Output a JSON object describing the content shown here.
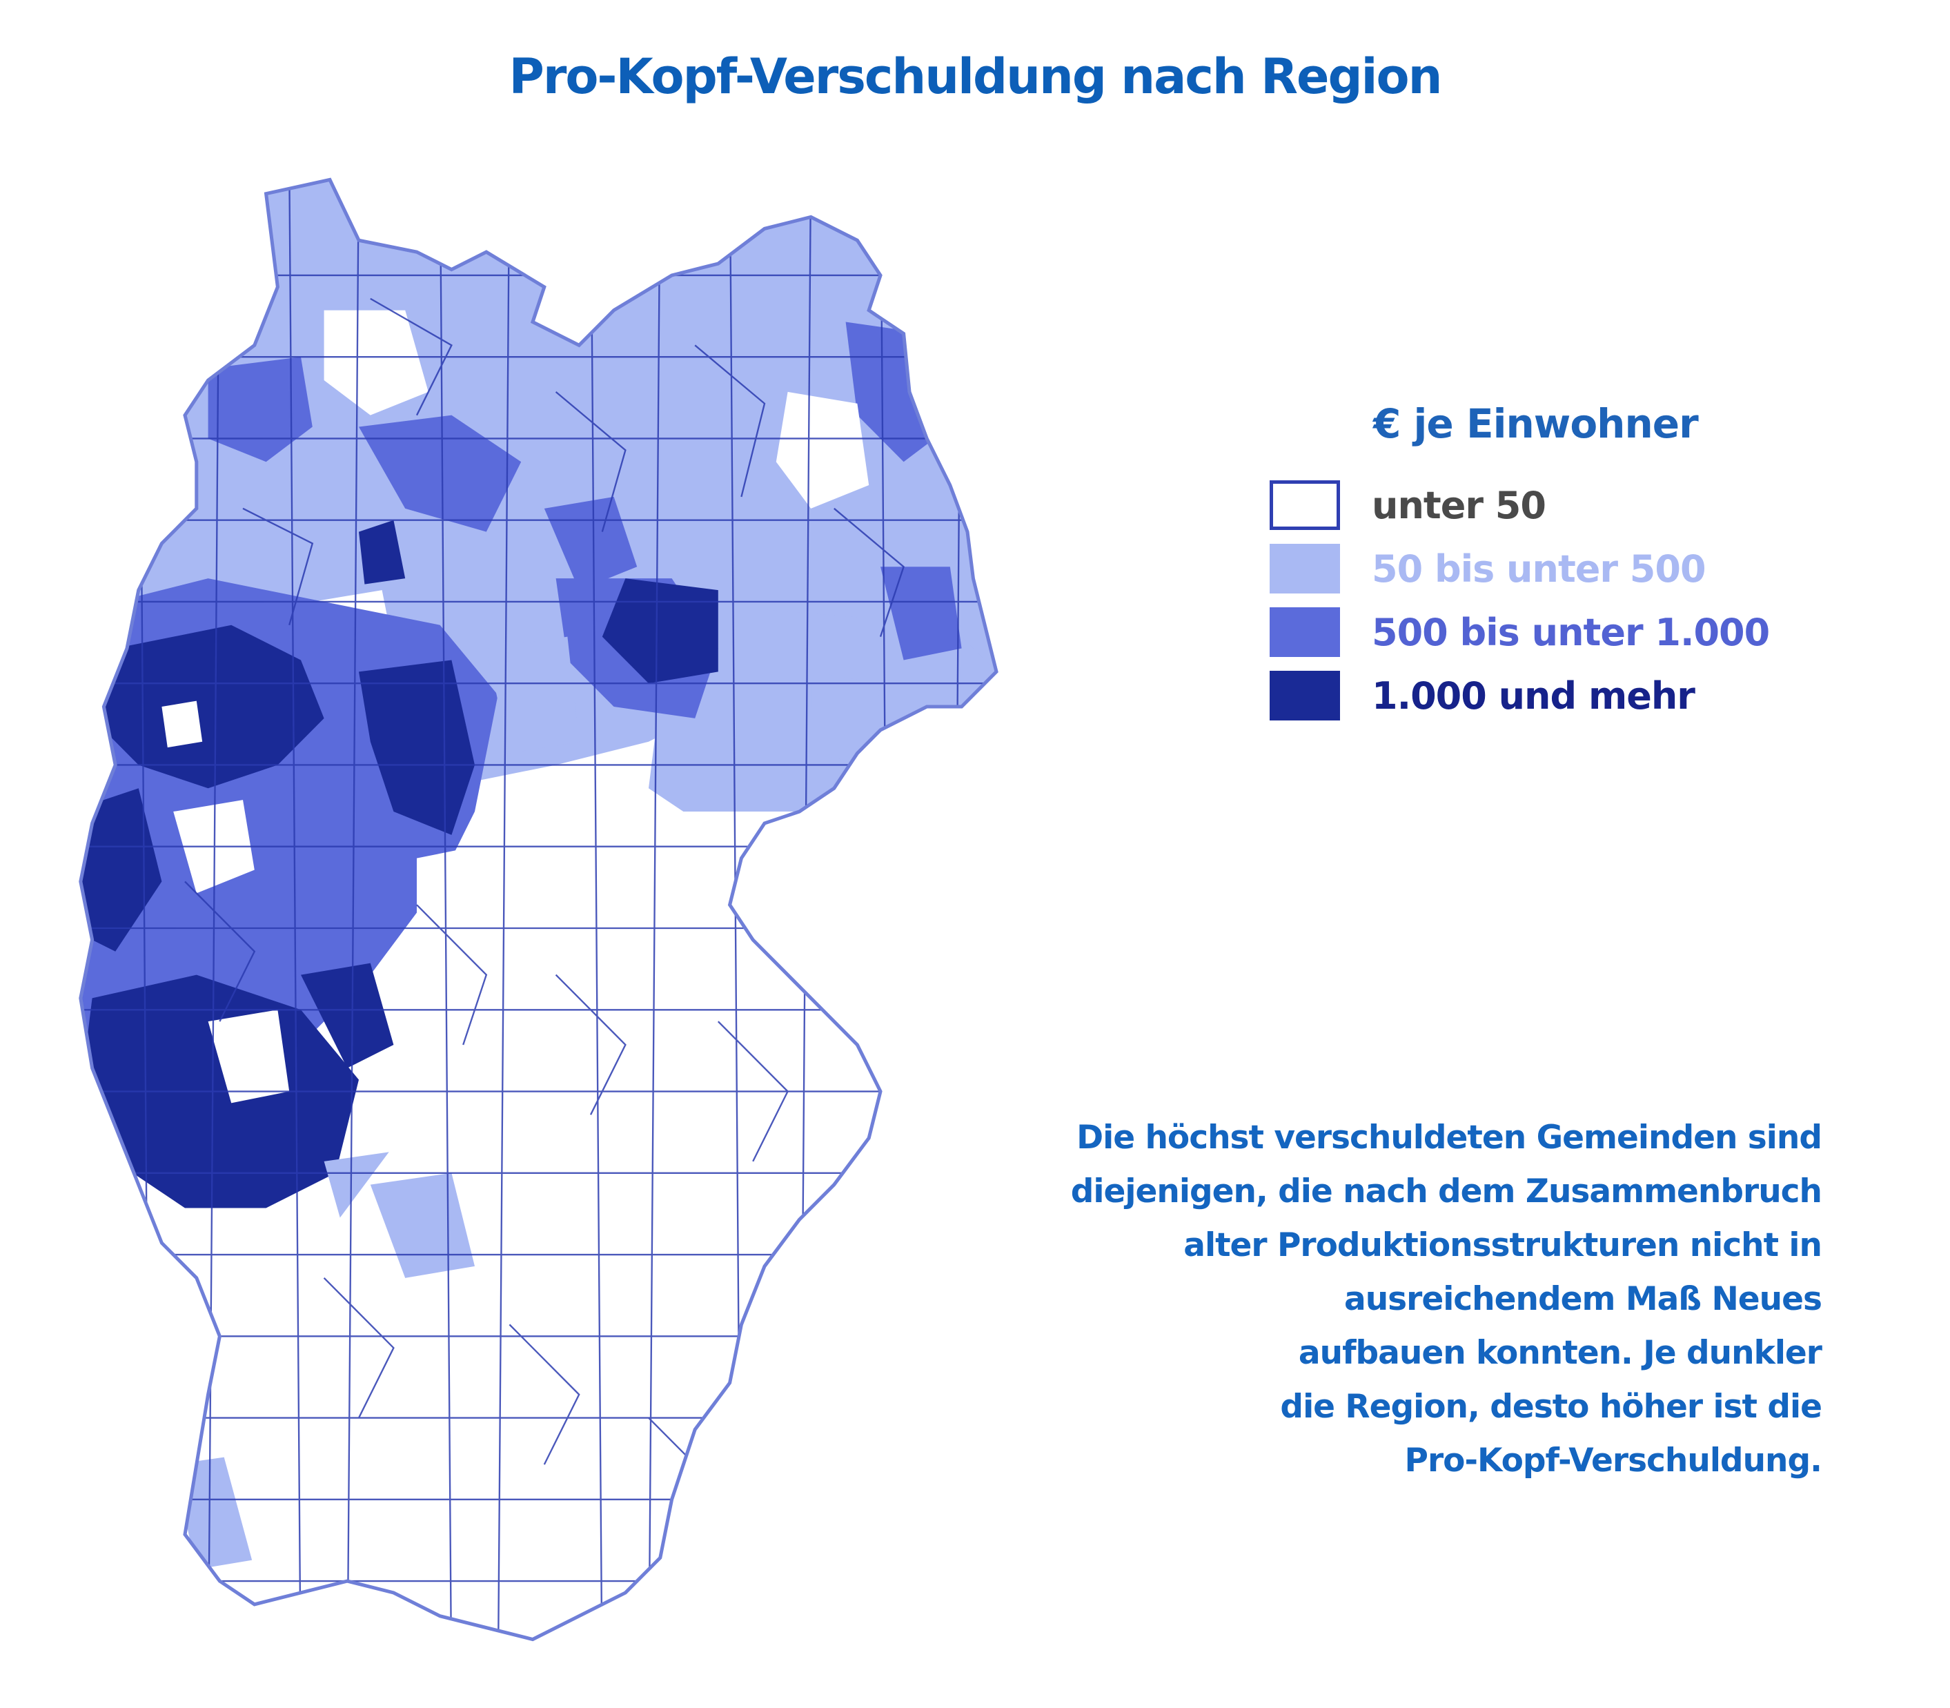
{
  "title": "Pro-Kopf-Verschuldung nach Region",
  "legend": {
    "title": "€ je Einwohner",
    "items": [
      {
        "label": "unter 50",
        "fill": "#ffffff",
        "text_color": "#4a4a4a"
      },
      {
        "label": "50 bis unter 500",
        "fill": "#a9b9f3",
        "text_color": "#a9b9f3"
      },
      {
        "label": "500 bis unter 1.000",
        "fill": "#5b6bdb",
        "text_color": "#5262d3"
      },
      {
        "label": "1.000 und mehr",
        "fill": "#1a2a96",
        "text_color": "#16228a"
      }
    ]
  },
  "description_lines": [
    "Die höchst verschuldeten Gemeinden sind",
    "diejenigen, die nach dem Zusammenbruch",
    "alter Produktionsstrukturen nicht in",
    "ausreichendem Maß Neues",
    "aufbauen konnten. Je dunkler",
    "die Region, desto höher ist die",
    "Pro-Kopf-Verschuldung."
  ],
  "colors": {
    "border": "#2b3bb0",
    "title": "#0d5fb8",
    "text": "#1465c0"
  }
}
